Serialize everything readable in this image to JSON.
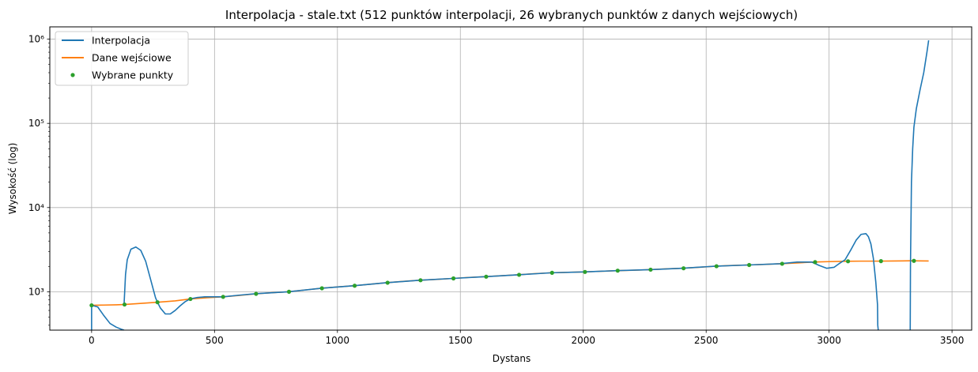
{
  "chart_data": {
    "type": "line",
    "title": "Interpolacja - stale.txt (512 punktów interpolacji, 26 wybranych punktów z danych wejściowych)",
    "xlabel": "Dystans",
    "ylabel": "Wysokość (log)",
    "yscale": "log",
    "xlim": [
      -170,
      3580
    ],
    "ylim": [
      350,
      1400000
    ],
    "x_ticks": [
      0,
      500,
      1000,
      1500,
      2000,
      2500,
      3000,
      3500
    ],
    "x_tick_labels": [
      "0",
      "500",
      "1000",
      "1500",
      "2000",
      "2500",
      "3000",
      "3500"
    ],
    "y_ticks": [
      1000,
      10000,
      100000,
      1000000
    ],
    "y_tick_labels": [
      "10³",
      "10⁴",
      "10⁵",
      "10⁶"
    ],
    "grid": true,
    "legend_position": "top-left",
    "colors": {
      "interpolation": "#1f77b4",
      "input": "#ff7f0e",
      "points": "#2ca02c"
    },
    "series": [
      {
        "name": "Interpolacja",
        "kind": "line",
        "color": "#1f77b4",
        "segments": [
          {
            "x": [
              0,
              0,
              0
            ],
            "y": [
              350,
              500,
              690
            ]
          },
          {
            "x": [
              0,
              25,
              50,
              75,
              100,
              120,
              132
            ],
            "y": [
              690,
              660,
              520,
              420,
              380,
              360,
              350
            ]
          },
          {
            "x": [
              132,
              138,
              145,
              160,
              180,
              200,
              220,
              240,
              260,
              268,
              280,
              300,
              320,
              340,
              360,
              380,
              400,
              430,
              460,
              500,
              535
            ],
            "y": [
              700,
              1600,
              2400,
              3200,
              3400,
              3100,
              2300,
              1400,
              850,
              750,
              640,
              545,
              545,
              600,
              680,
              760,
              820,
              855,
              870,
              870,
              870
            ]
          },
          {
            "x": [
              535,
              600,
              670,
              800,
              935,
              1070,
              1200,
              1335,
              1470,
              1600,
              1735,
              1870,
              2000,
              2135,
              2270,
              2400,
              2535,
              2670,
              2800,
              2870,
              2930,
              2960,
              2990,
              3020,
              3040,
              3065,
              3090,
              3110,
              3130,
              3150,
              3160,
              3170,
              3180,
              3190,
              3197,
              3198,
              3200
            ],
            "y": [
              870,
              910,
              950,
              1000,
              1100,
              1180,
              1280,
              1370,
              1440,
              1510,
              1590,
              1680,
              1720,
              1780,
              1830,
              1900,
              2010,
              2080,
              2150,
              2250,
              2250,
              2050,
              1900,
              1950,
              2150,
              2400,
              3200,
              4100,
              4800,
              4900,
              4500,
              3700,
              2500,
              1300,
              700,
              400,
              350
            ]
          },
          {
            "x": [
              3330,
              3331,
              3335,
              3340,
              3345,
              3355,
              3370,
              3385,
              3398,
              3405
            ],
            "y": [
              350,
              2000,
              20000,
              50000,
              90000,
              150000,
              250000,
              400000,
              700000,
              970000
            ]
          }
        ]
      },
      {
        "name": "Dane wejściowe",
        "kind": "line",
        "color": "#ff7f0e",
        "x": [
          0,
          50,
          100,
          132,
          180,
          268,
          340,
          400,
          470,
          535,
          600,
          670,
          735,
          800,
          870,
          935,
          1000,
          1070,
          1135,
          1200,
          1270,
          1335,
          1400,
          1470,
          1535,
          1600,
          1670,
          1735,
          1800,
          1870,
          1935,
          2000,
          2070,
          2135,
          2200,
          2270,
          2335,
          2400,
          2470,
          2535,
          2600,
          2670,
          2735,
          2800,
          2870,
          2935,
          3000,
          3065,
          3130,
          3200,
          3265,
          3330,
          3405
        ],
        "y": [
          690,
          695,
          700,
          705,
          720,
          750,
          780,
          820,
          850,
          870,
          905,
          945,
          975,
          1000,
          1050,
          1100,
          1140,
          1180,
          1230,
          1280,
          1330,
          1370,
          1400,
          1440,
          1480,
          1510,
          1550,
          1590,
          1640,
          1680,
          1700,
          1720,
          1750,
          1780,
          1800,
          1830,
          1870,
          1900,
          1950,
          2010,
          2050,
          2080,
          2110,
          2150,
          2200,
          2250,
          2280,
          2300,
          2310,
          2310,
          2320,
          2330,
          2320
        ]
      },
      {
        "name": "Wybrane punkty",
        "kind": "points",
        "color": "#2ca02c",
        "x": [
          0,
          134,
          268,
          402,
          535,
          669,
          803,
          937,
          1070,
          1204,
          1338,
          1472,
          1605,
          1739,
          1873,
          2007,
          2140,
          2274,
          2408,
          2542,
          2675,
          2809,
          2943,
          3077,
          3211,
          3345
        ],
        "y": [
          690,
          705,
          750,
          820,
          870,
          945,
          1000,
          1100,
          1180,
          1280,
          1370,
          1440,
          1510,
          1590,
          1680,
          1720,
          1780,
          1830,
          1900,
          2010,
          2080,
          2150,
          2250,
          2300,
          2310,
          2330
        ]
      }
    ]
  }
}
